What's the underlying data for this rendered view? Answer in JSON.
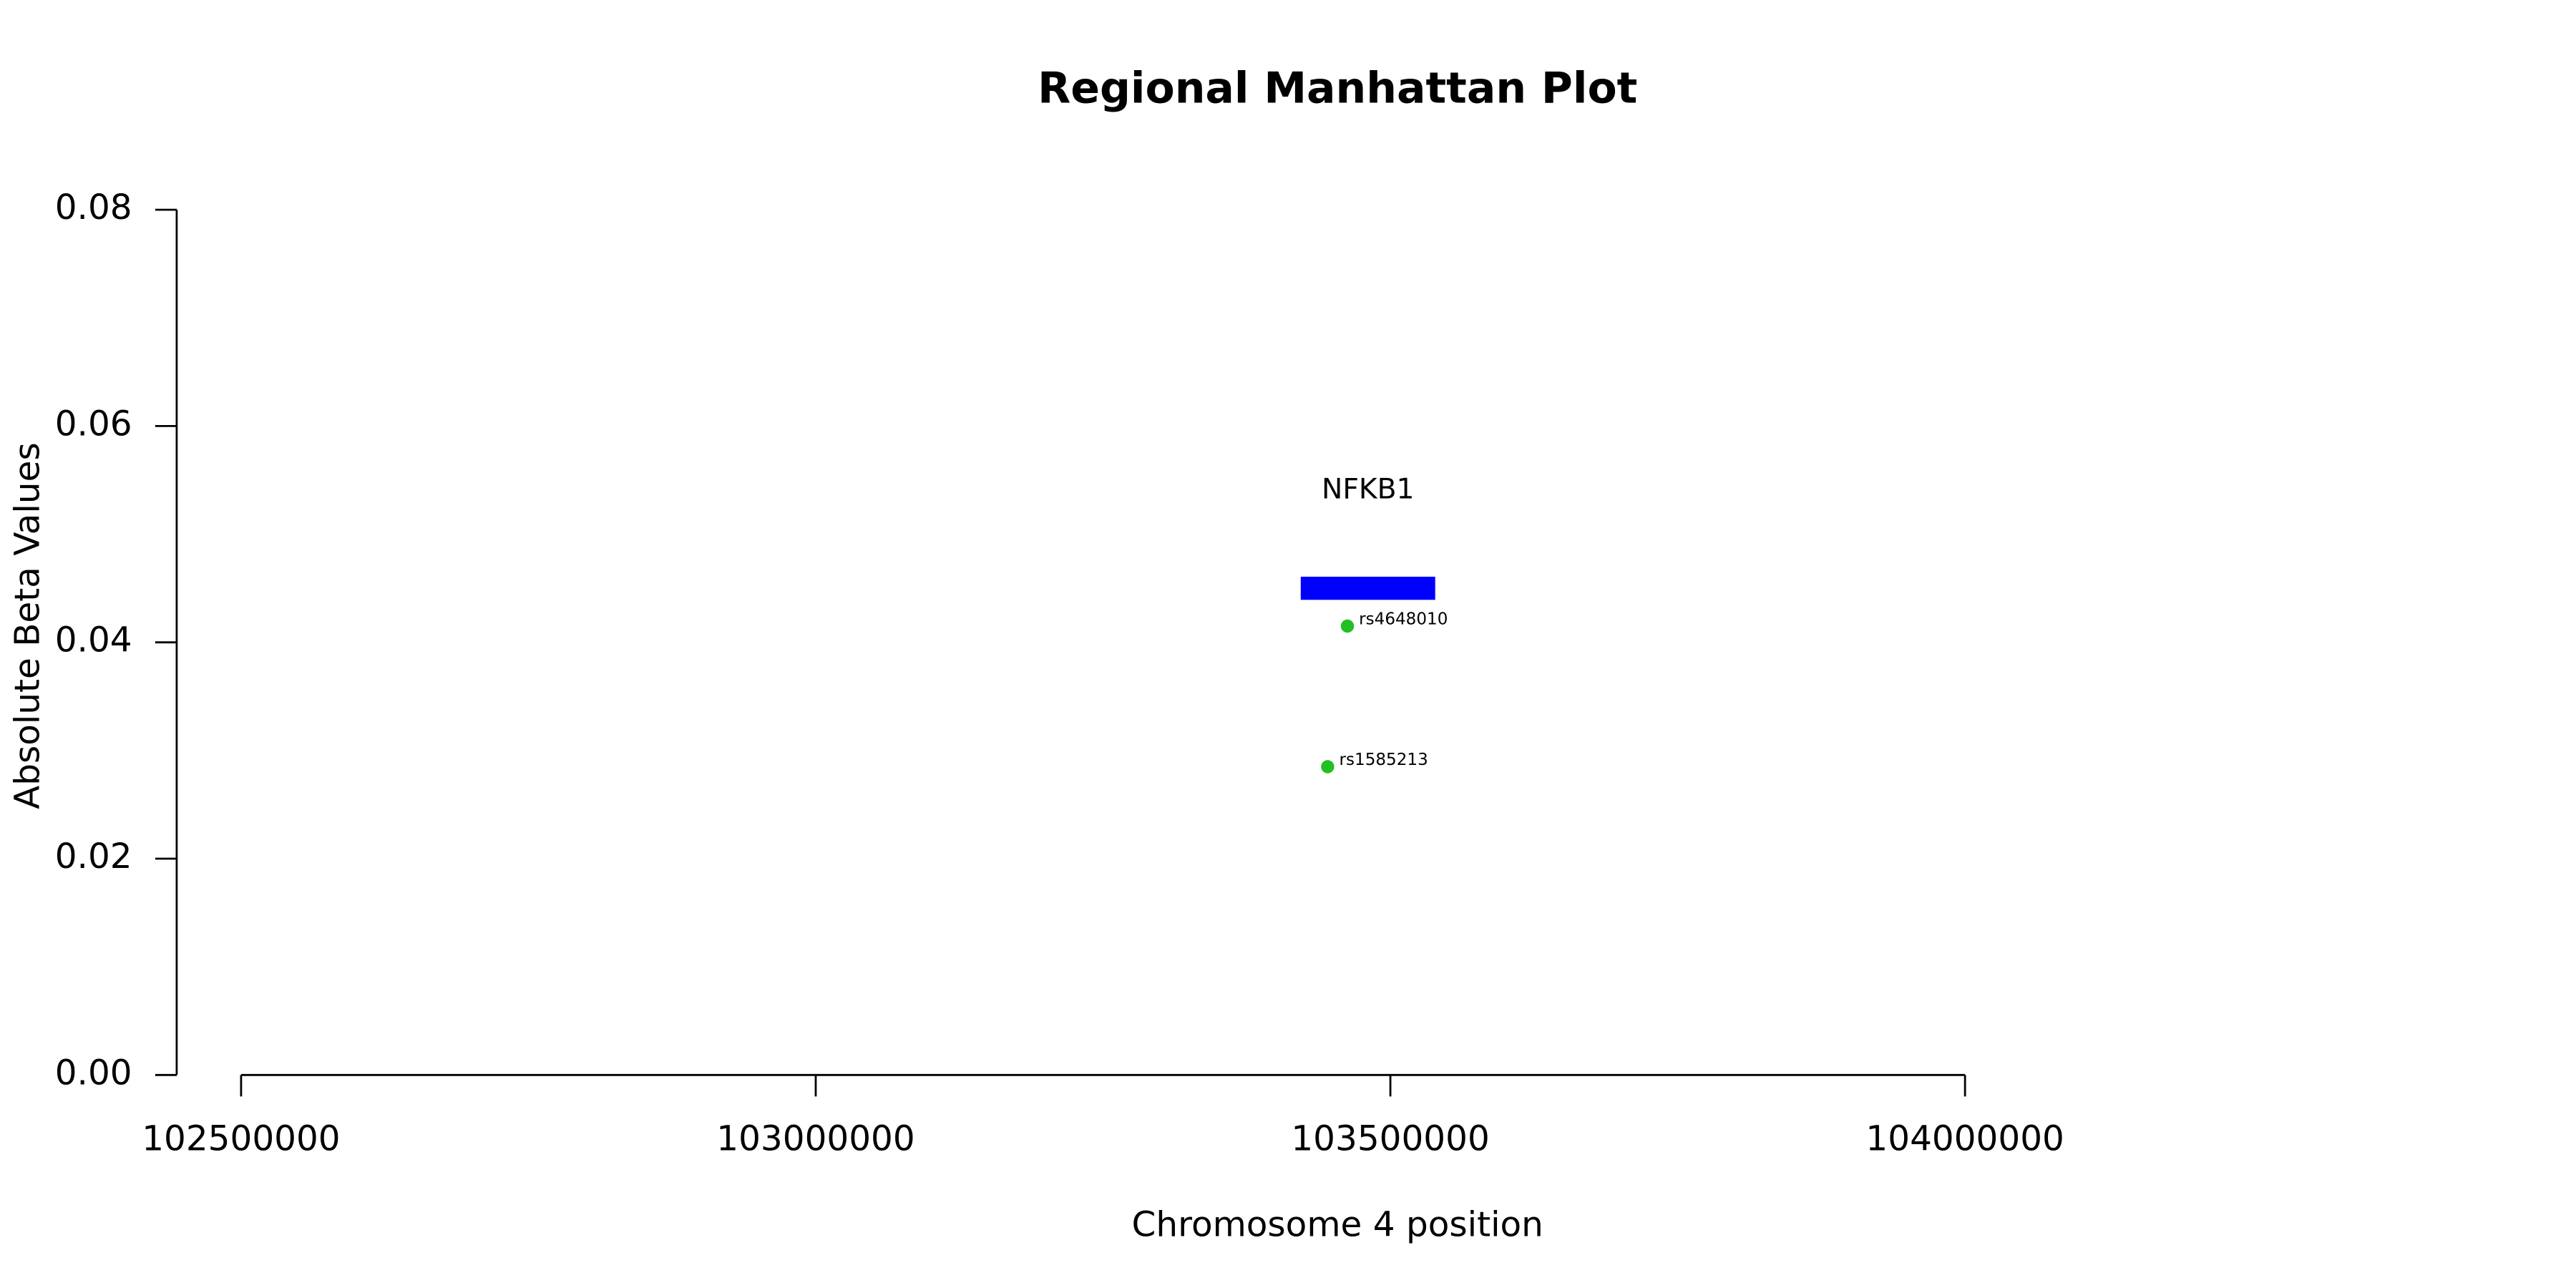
{
  "chart_data": {
    "type": "scatter",
    "title": "Regional Manhattan Plot",
    "xlabel": "Chromosome 4 position",
    "ylabel": "Absolute Beta Values",
    "x": [
      103462600,
      103445400
    ],
    "values": [
      0.0415,
      0.0285
    ],
    "point_labels": [
      "rs4648010",
      "rs1585213"
    ],
    "color": "#22c022",
    "genes": [
      {
        "name": "NFKB1",
        "start": 103422000,
        "end": 103539000,
        "y": 0.045,
        "color": "#0000ff"
      }
    ],
    "xlim": [
      102500000,
      104000000
    ],
    "xticks": [
      102500000,
      103000000,
      103500000,
      104000000
    ],
    "ylim": [
      0,
      0.08
    ],
    "yticks": [
      {
        "value": 0,
        "label": "0.00"
      },
      0.02,
      0.04,
      0.06,
      0.08
    ],
    "grid": false
  }
}
